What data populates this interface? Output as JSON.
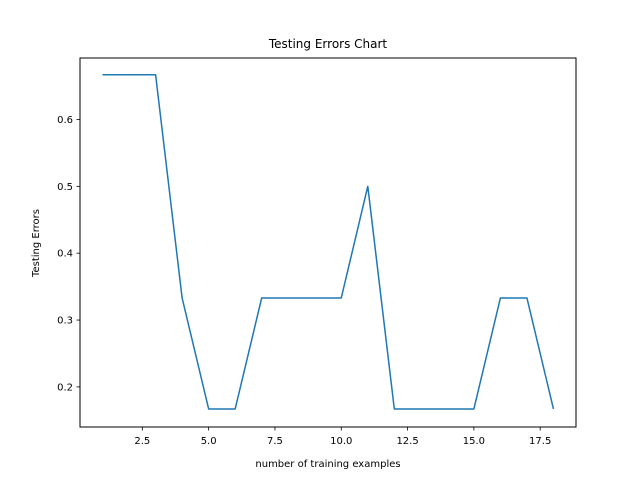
{
  "chart_data": {
    "type": "line",
    "title": "Testing Errors Chart",
    "xlabel": "number of training examples",
    "ylabel": "Testing Errors",
    "xlim": [
      0.15,
      18.85
    ],
    "ylim": [
      0.14,
      0.692
    ],
    "xticks": [
      2.5,
      5.0,
      7.5,
      10.0,
      12.5,
      15.0,
      17.5
    ],
    "xtick_labels": [
      "2.5",
      "5.0",
      "7.5",
      "10.0",
      "12.5",
      "15.0",
      "17.5"
    ],
    "yticks": [
      0.2,
      0.3,
      0.4,
      0.5,
      0.6
    ],
    "ytick_labels": [
      "0.2",
      "0.3",
      "0.4",
      "0.5",
      "0.6"
    ],
    "grid": false,
    "legend": false,
    "series": [
      {
        "color": "#1f77b4",
        "x": [
          1,
          2,
          3,
          4,
          5,
          6,
          7,
          8,
          9,
          10,
          11,
          12,
          13,
          14,
          15,
          16,
          17,
          18
        ],
        "y": [
          0.667,
          0.667,
          0.667,
          0.333,
          0.167,
          0.167,
          0.333,
          0.333,
          0.333,
          0.333,
          0.5,
          0.167,
          0.167,
          0.167,
          0.167,
          0.333,
          0.333,
          0.167
        ]
      }
    ]
  }
}
